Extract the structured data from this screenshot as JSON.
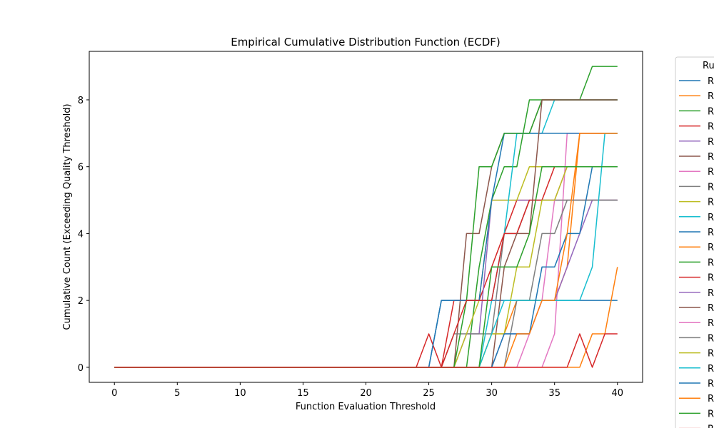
{
  "chart_data": {
    "type": "line",
    "title": "Empirical Cumulative Distribution Function (ECDF)",
    "xlabel": "Function Evaluation Threshold",
    "ylabel": "Cumulative Count (Exceeding Quality Threshold)",
    "xlim": [
      -2,
      42
    ],
    "ylim": [
      -0.45,
      9.45
    ],
    "xticks": [
      0,
      5,
      10,
      15,
      20,
      25,
      30,
      35,
      40
    ],
    "yticks": [
      0,
      2,
      4,
      6,
      8
    ],
    "grid": false,
    "legend": {
      "title": "Ru",
      "placement": "right-outside",
      "entry_label": "R"
    },
    "colors": [
      "#1f77b4",
      "#ff7f0e",
      "#2ca02c",
      "#d62728",
      "#9467bd",
      "#8c564b",
      "#e377c2",
      "#7f7f7f",
      "#bcbd22",
      "#17becf"
    ],
    "x": [
      0,
      1,
      2,
      3,
      4,
      5,
      6,
      7,
      8,
      9,
      10,
      11,
      12,
      13,
      14,
      15,
      16,
      17,
      18,
      19,
      20,
      21,
      22,
      23,
      24,
      25,
      26,
      27,
      28,
      29,
      30,
      31,
      32,
      33,
      34,
      35,
      36,
      37,
      38,
      39,
      40
    ],
    "series": [
      {
        "steps": [
          [
            26,
            2
          ]
        ]
      },
      {
        "steps": [
          [
            38,
            1
          ],
          [
            40,
            3
          ]
        ]
      },
      {
        "steps": [
          [
            29,
            3
          ],
          [
            30,
            5
          ],
          [
            31,
            6
          ],
          [
            33,
            8
          ],
          [
            38,
            9
          ]
        ]
      },
      {
        "steps": [
          [
            24,
            0
          ],
          [
            25,
            1
          ],
          [
            26,
            0
          ],
          [
            27,
            2
          ],
          [
            30,
            3
          ],
          [
            31,
            4
          ],
          [
            32,
            5
          ]
        ]
      },
      {
        "steps": [
          [
            28,
            1
          ],
          [
            30,
            5
          ],
          [
            31,
            5
          ]
        ]
      },
      {
        "steps": [
          [
            28,
            4
          ],
          [
            30,
            6
          ],
          [
            31,
            7
          ],
          [
            34,
            8
          ]
        ]
      },
      {
        "steps": [
          [
            35,
            1
          ],
          [
            36,
            7
          ],
          [
            39,
            7
          ]
        ]
      },
      {
        "steps": [
          [
            27,
            1
          ],
          [
            31,
            4
          ],
          [
            33,
            5
          ],
          [
            35,
            5
          ]
        ]
      },
      {
        "steps": [
          [
            28,
            1
          ],
          [
            29,
            2
          ],
          [
            30,
            5
          ],
          [
            32,
            5
          ],
          [
            33,
            6
          ],
          [
            35,
            6
          ]
        ]
      },
      {
        "steps": [
          [
            30,
            2
          ],
          [
            31,
            4
          ],
          [
            32,
            7
          ],
          [
            35,
            8
          ]
        ]
      },
      {
        "steps": [
          [
            25,
            0
          ],
          [
            26,
            2
          ],
          [
            30,
            5
          ],
          [
            31,
            7
          ],
          [
            35,
            7
          ]
        ]
      },
      {
        "steps": [
          [
            29,
            0
          ],
          [
            30,
            1
          ],
          [
            32,
            2
          ],
          [
            36,
            3
          ],
          [
            37,
            7
          ]
        ]
      },
      {
        "steps": [
          [
            28,
            2
          ],
          [
            29,
            6
          ],
          [
            30,
            6
          ],
          [
            31,
            7
          ],
          [
            34,
            8
          ]
        ]
      },
      {
        "steps": [
          [
            27,
            1
          ],
          [
            28,
            2
          ],
          [
            29,
            2
          ],
          [
            31,
            4
          ],
          [
            33,
            5
          ],
          [
            34,
            5
          ],
          [
            35,
            6
          ]
        ]
      },
      {
        "steps": [
          [
            31,
            1
          ],
          [
            34,
            2
          ],
          [
            36,
            3
          ],
          [
            37,
            4
          ],
          [
            38,
            5
          ]
        ]
      },
      {
        "steps": [
          [
            29,
            0
          ],
          [
            31,
            3
          ],
          [
            32,
            4
          ],
          [
            34,
            8
          ]
        ]
      },
      {
        "steps": [
          [
            33,
            1
          ],
          [
            34,
            2
          ],
          [
            35,
            5
          ],
          [
            36,
            6
          ]
        ]
      },
      {
        "steps": [
          [
            32,
            2
          ],
          [
            34,
            4
          ],
          [
            36,
            5
          ]
        ]
      },
      {
        "steps": [
          [
            30,
            1
          ],
          [
            32,
            3
          ],
          [
            34,
            5
          ],
          [
            36,
            6
          ]
        ]
      },
      {
        "steps": [
          [
            30,
            1
          ],
          [
            31,
            2
          ],
          [
            37,
            2
          ],
          [
            38,
            3
          ],
          [
            39,
            7
          ]
        ]
      },
      {
        "steps": [
          [
            31,
            1
          ],
          [
            34,
            3
          ],
          [
            36,
            4
          ],
          [
            38,
            6
          ]
        ]
      },
      {
        "steps": [
          [
            32,
            1
          ],
          [
            34,
            2
          ],
          [
            36,
            4
          ],
          [
            37,
            7
          ]
        ]
      },
      {
        "steps": [
          [
            29,
            0
          ],
          [
            30,
            3
          ],
          [
            33,
            4
          ],
          [
            34,
            6
          ]
        ]
      },
      {
        "steps": [
          [
            36,
            0
          ],
          [
            37,
            1
          ],
          [
            38,
            0
          ],
          [
            39,
            1
          ]
        ]
      }
    ]
  }
}
